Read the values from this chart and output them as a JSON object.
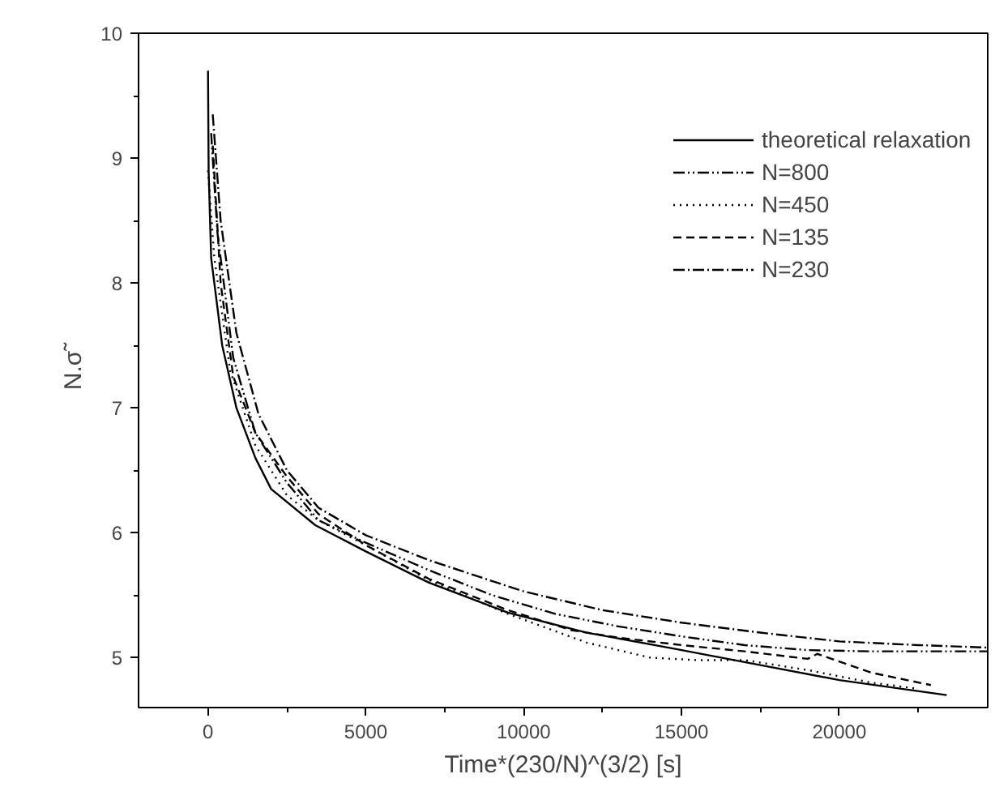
{
  "chart_data": {
    "type": "line",
    "xlabel": "Time*(230/N)^(3/2) [s]",
    "ylabel": "N.σ̃",
    "xlim": [
      -2200,
      24700
    ],
    "ylim": [
      4.6,
      10
    ],
    "xticks": [
      0,
      5000,
      10000,
      15000,
      20000
    ],
    "yticks": [
      5,
      6,
      7,
      8,
      9,
      10
    ],
    "grid": false,
    "legend": "top right",
    "marker": "none",
    "series": [
      {
        "name": "theoretical relaxation",
        "color": "#000000",
        "line_style": "solid",
        "x": [
          0,
          20,
          100,
          450,
          900,
          1500,
          2000,
          3400,
          5000,
          7000,
          9500,
          12000,
          14800,
          17500,
          20000,
          23400
        ],
        "values": [
          9.7,
          8.9,
          8.2,
          7.5,
          7.0,
          6.6,
          6.35,
          6.06,
          5.85,
          5.6,
          5.36,
          5.2,
          5.07,
          4.94,
          4.82,
          4.7
        ]
      },
      {
        "name": "N=800",
        "color": "#000000",
        "line_style": "dashdotdot",
        "x": [
          100,
          300,
          800,
          1500,
          2500,
          3500,
          5000,
          7000,
          9000,
          11000,
          13000,
          15000,
          17000,
          19000,
          21000,
          23000,
          24700
        ],
        "values": [
          9.2,
          8.4,
          7.4,
          6.8,
          6.4,
          6.1,
          5.92,
          5.7,
          5.5,
          5.35,
          5.25,
          5.17,
          5.1,
          5.06,
          5.05,
          5.05,
          5.05
        ]
      },
      {
        "name": "N=450",
        "color": "#000000",
        "line_style": "dotted",
        "x": [
          0,
          200,
          700,
          1500,
          2500,
          3500,
          5000,
          7000,
          9500,
          12000,
          14000,
          15500,
          17000,
          19000,
          21000,
          22500
        ],
        "values": [
          8.9,
          8.2,
          7.3,
          6.7,
          6.3,
          6.1,
          5.9,
          5.62,
          5.35,
          5.12,
          5.0,
          4.98,
          4.98,
          4.9,
          4.8,
          4.75
        ]
      },
      {
        "name": "N=135",
        "color": "#000000",
        "line_style": "dashed",
        "x": [
          150,
          400,
          800,
          1500,
          2500,
          3500,
          5000,
          7000,
          9500,
          11500,
          13000,
          15000,
          17000,
          19000,
          19300,
          21000,
          22900
        ],
        "values": [
          9.1,
          8.0,
          7.25,
          6.8,
          6.45,
          6.15,
          5.9,
          5.63,
          5.38,
          5.22,
          5.16,
          5.1,
          5.05,
          4.99,
          5.03,
          4.88,
          4.78
        ]
      },
      {
        "name": "N=230",
        "color": "#000000",
        "line_style": "dashdot",
        "x": [
          150,
          400,
          900,
          1600,
          2500,
          3500,
          5000,
          7000,
          10000,
          12500,
          15000,
          17500,
          20000,
          22500,
          24700
        ],
        "values": [
          9.35,
          8.5,
          7.6,
          6.95,
          6.5,
          6.2,
          5.98,
          5.78,
          5.53,
          5.38,
          5.28,
          5.2,
          5.13,
          5.1,
          5.08
        ]
      }
    ]
  }
}
